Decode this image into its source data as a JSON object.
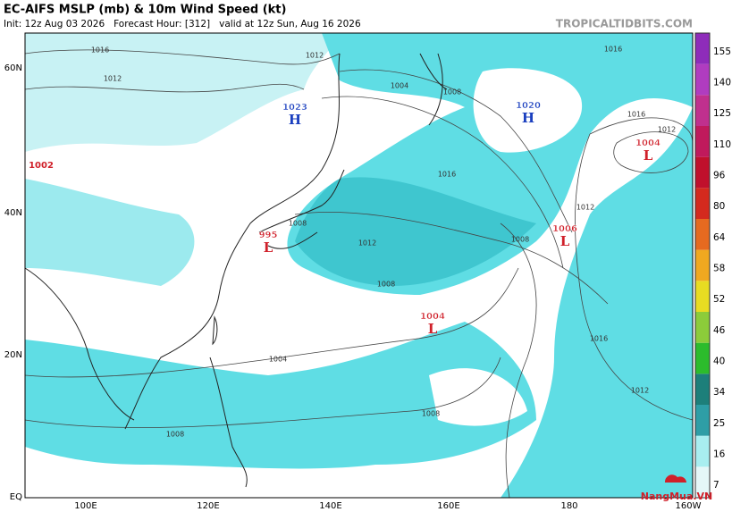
{
  "header": {
    "title": "EC-AIFS MSLP (mb) & 10m Wind Speed (kt)",
    "subtitle": "Init: 12z Aug 03 2026   Forecast Hour: [312]   valid at 12z Sun, Aug 16 2026",
    "site": "TROPICALTIDBITS.COM"
  },
  "lat_labels": [
    "60N",
    "40N",
    "20N",
    "EQ"
  ],
  "lon_labels": [
    "100E",
    "120E",
    "140E",
    "160E",
    "180",
    "160W"
  ],
  "colorbar": {
    "labels": [
      "7",
      "16",
      "25",
      "34",
      "40",
      "46",
      "52",
      "58",
      "64",
      "80",
      "96",
      "110",
      "125",
      "140",
      "155"
    ],
    "colors": [
      "#e4f7f8",
      "#a8eef0",
      "#2e9ea6",
      "#1d7f7a",
      "#2cbc2c",
      "#8ccc3a",
      "#e8dc22",
      "#f0a820",
      "#e66a20",
      "#d42a1e",
      "#c0102c",
      "#c01a5c",
      "#c0308e",
      "#b03cc0",
      "#8e2cba"
    ]
  },
  "centers": [
    {
      "symbol": "H",
      "pressure": "1023",
      "color": "#1a3fbf"
    },
    {
      "symbol": "H",
      "pressure": "1020",
      "color": "#1a3fbf"
    },
    {
      "symbol": "L",
      "pressure": "1004",
      "color": "#d0202a"
    },
    {
      "symbol": "L",
      "pressure": "1006",
      "color": "#d0202a"
    },
    {
      "symbol": "L",
      "pressure": "995",
      "color": "#d0202a"
    },
    {
      "symbol": "L",
      "pressure": "1004",
      "color": "#d0202a"
    }
  ],
  "extra_center_label": "1002",
  "isobar_labels": [
    "1016",
    "1012",
    "1012",
    "1004",
    "1008",
    "1016",
    "1016",
    "1012",
    "1012",
    "1016",
    "1012",
    "1008",
    "1008",
    "1008",
    "1016",
    "1012",
    "1004",
    "1008",
    "1008"
  ],
  "watermark": "NangMua.VN"
}
